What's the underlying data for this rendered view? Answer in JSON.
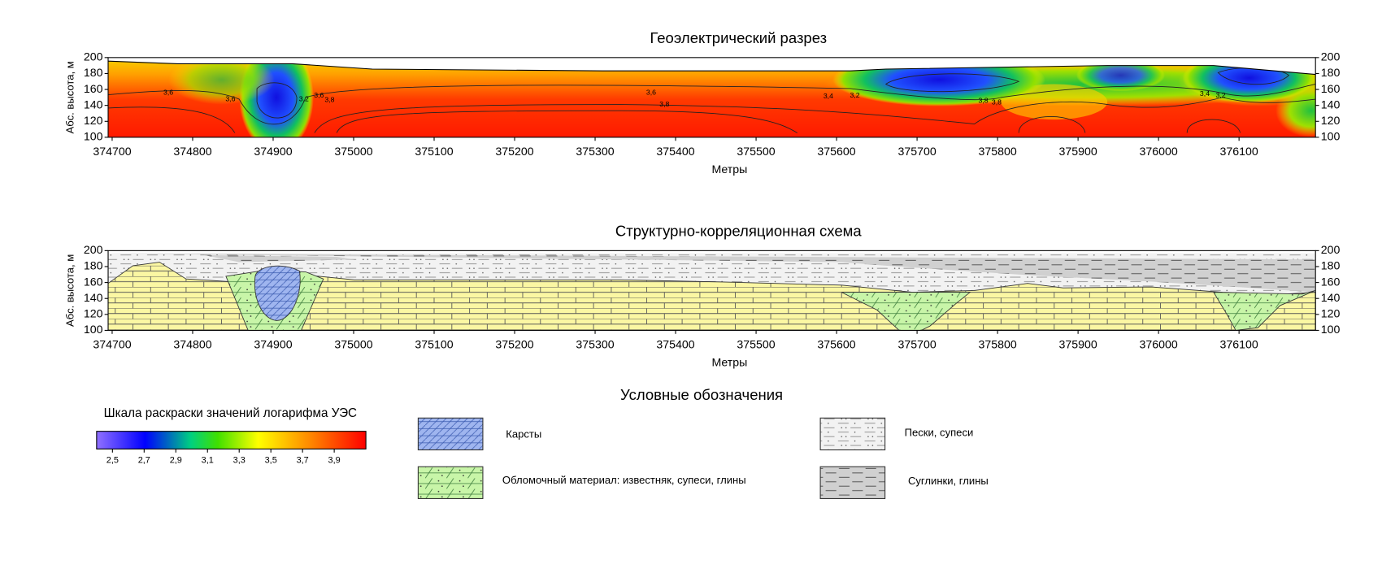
{
  "chart_data": [
    {
      "type": "contour",
      "title": "Геоэлектрический разрез",
      "xlabel": "Метры",
      "ylabel": "Абс. высота, м",
      "xlim": [
        374695,
        376195
      ],
      "ylim": [
        100,
        200
      ],
      "xticks": [
        374700,
        374800,
        374900,
        375000,
        375100,
        375200,
        375300,
        375400,
        375500,
        375600,
        375700,
        375800,
        375900,
        376000,
        376100
      ],
      "yticks": [
        100,
        120,
        140,
        160,
        180,
        200
      ],
      "y2lim": [
        100,
        200
      ],
      "y2ticks": [
        100,
        120,
        140,
        160,
        180,
        200
      ],
      "contour_labels": [
        {
          "value": 3.6,
          "label": "3,6"
        },
        {
          "value": 3.6,
          "label": "3,6"
        },
        {
          "value": 3.2,
          "label": "3,2"
        },
        {
          "value": 3.6,
          "label": "3,6"
        },
        {
          "value": 3.8,
          "label": "3,8"
        },
        {
          "value": 3.6,
          "label": "3,6"
        },
        {
          "value": 3.8,
          "label": "3,8"
        },
        {
          "value": 3.4,
          "label": "3,4"
        },
        {
          "value": 3.2,
          "label": "3,2"
        },
        {
          "value": 3.8,
          "label": "3,8"
        },
        {
          "value": 3.8,
          "label": "3,8"
        },
        {
          "value": 3.4,
          "label": "3,4"
        },
        {
          "value": 3.2,
          "label": "3,2"
        }
      ]
    },
    {
      "type": "section",
      "title": "Структурно-корреляционная схема",
      "xlabel": "Метры",
      "ylabel": "Абс. высота, м",
      "xlim": [
        374695,
        376195
      ],
      "ylim": [
        100,
        200
      ],
      "xticks": [
        374700,
        374800,
        374900,
        375000,
        375100,
        375200,
        375300,
        375400,
        375500,
        375600,
        375700,
        375800,
        375900,
        376000,
        376100
      ],
      "yticks": [
        100,
        120,
        140,
        160,
        180,
        200
      ],
      "y2lim": [
        100,
        200
      ],
      "y2ticks": [
        100,
        120,
        140,
        160,
        180,
        200
      ]
    }
  ],
  "legend": {
    "title": "Условные обозначения",
    "colorbar": {
      "title": "Шкала раскраски значений логарифма УЭС",
      "clim": [
        2.4,
        4.1
      ],
      "ticks": [
        {
          "value": 2.5,
          "label": "2,5"
        },
        {
          "value": 2.7,
          "label": "2,7"
        },
        {
          "value": 2.9,
          "label": "2,9"
        },
        {
          "value": 3.1,
          "label": "3,1"
        },
        {
          "value": 3.3,
          "label": "3,3"
        },
        {
          "value": 3.5,
          "label": "3,5"
        },
        {
          "value": 3.7,
          "label": "3,7"
        },
        {
          "value": 3.9,
          "label": "3,9"
        }
      ]
    },
    "items": [
      "Карсты",
      "Обломочный материал: известняк, супеси, глины",
      "Пески, супеси",
      "Суглинки, глины"
    ]
  }
}
